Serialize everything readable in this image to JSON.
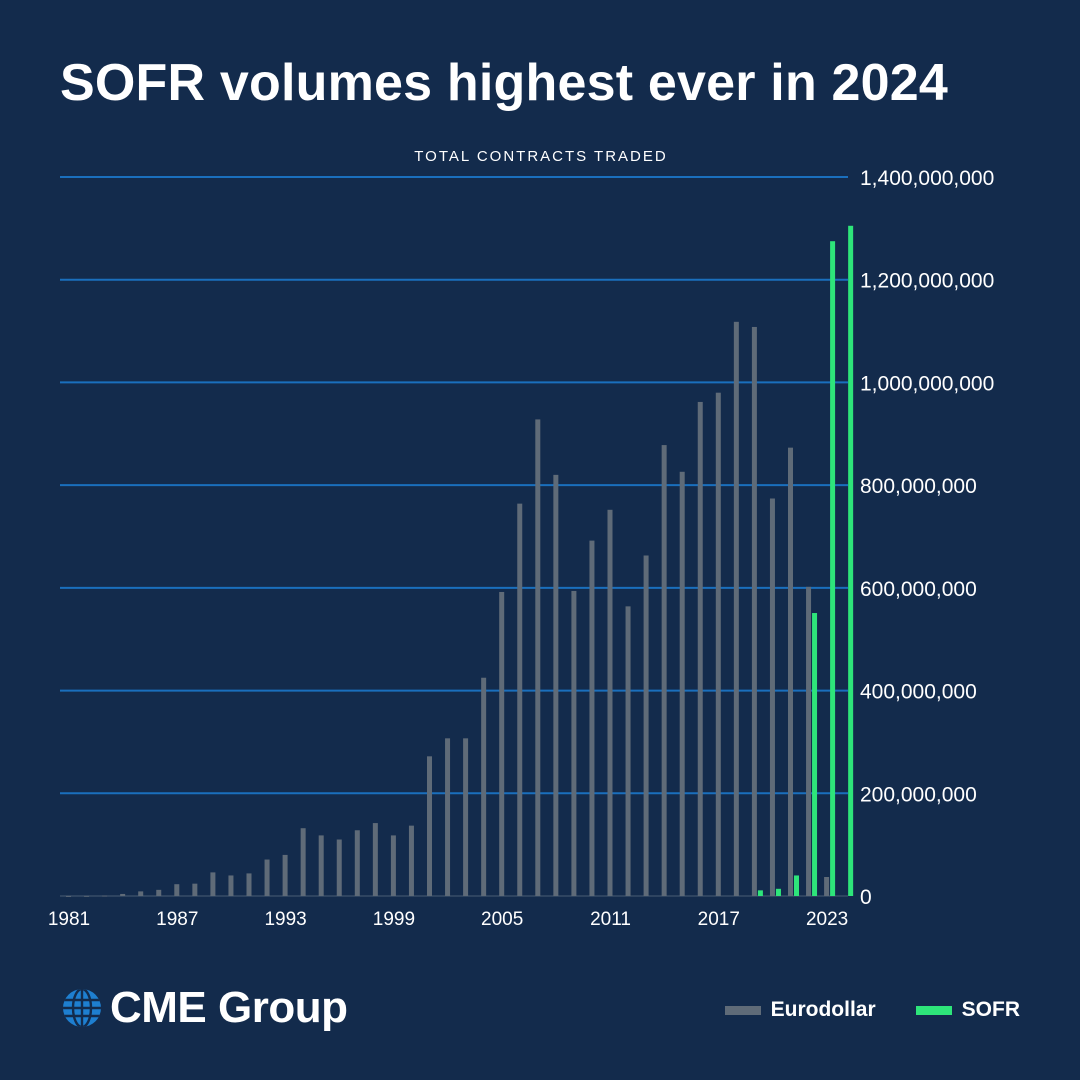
{
  "title": "SOFR volumes highest ever in 2024",
  "brand": {
    "name": "CME Group",
    "icon": "globe-icon"
  },
  "colors": {
    "background": "#132b4c",
    "grid": "#1a6fbd",
    "eurodollar": "#5f6b78",
    "sofr": "#2ee57a",
    "text": "#ffffff"
  },
  "chart_data": {
    "type": "bar",
    "title": "TOTAL CONTRACTS TRADED",
    "xlabel": "",
    "ylabel": "",
    "ylim": [
      0,
      1400000000
    ],
    "yticks": [
      0,
      200000000,
      400000000,
      600000000,
      800000000,
      1000000000,
      1200000000,
      1400000000
    ],
    "ytick_labels": [
      "0",
      "200,000,000",
      "400,000,000",
      "600,000,000",
      "800,000,000",
      "1,000,000,000",
      "1,200,000,000",
      "1,400,000,000"
    ],
    "y_axis_position": "right",
    "grid": true,
    "legend_position": "bottom-right",
    "categories": [
      "1981",
      "1982",
      "1983",
      "1984",
      "1985",
      "1986",
      "1987",
      "1988",
      "1989",
      "1990",
      "1991",
      "1992",
      "1993",
      "1994",
      "1995",
      "1996",
      "1997",
      "1998",
      "1999",
      "2000",
      "2001",
      "2002",
      "2003",
      "2004",
      "2005",
      "2006",
      "2007",
      "2008",
      "2009",
      "2010",
      "2011",
      "2012",
      "2013",
      "2014",
      "2015",
      "2016",
      "2017",
      "2018",
      "2019",
      "2020",
      "2021",
      "2022",
      "2023",
      "2024"
    ],
    "xtick_labels": [
      "1981",
      "1987",
      "1993",
      "1999",
      "2005",
      "2011",
      "2017",
      "2023"
    ],
    "series": [
      {
        "name": "Eurodollar",
        "color": "#5f6b78",
        "values": [
          200000,
          400000,
          900000,
          4000000,
          9000000,
          12000000,
          23000000,
          24000000,
          46000000,
          40000000,
          44000000,
          71000000,
          80000000,
          132000000,
          118000000,
          110000000,
          128000000,
          142000000,
          118000000,
          137000000,
          272000000,
          307000000,
          307000000,
          425000000,
          592000000,
          764000000,
          928000000,
          820000000,
          594000000,
          692000000,
          752000000,
          564000000,
          663000000,
          878000000,
          826000000,
          962000000,
          980000000,
          1118000000,
          1108000000,
          774000000,
          873000000,
          602000000,
          37000000,
          0
        ]
      },
      {
        "name": "SOFR",
        "color": "#2ee57a",
        "values": [
          0,
          0,
          0,
          0,
          0,
          0,
          0,
          0,
          0,
          0,
          0,
          0,
          0,
          0,
          0,
          0,
          0,
          0,
          0,
          0,
          0,
          0,
          0,
          0,
          0,
          0,
          0,
          0,
          0,
          0,
          0,
          0,
          0,
          0,
          0,
          0,
          0,
          0,
          11000000,
          14000000,
          40000000,
          551000000,
          1275000000,
          1305000000
        ]
      }
    ]
  }
}
